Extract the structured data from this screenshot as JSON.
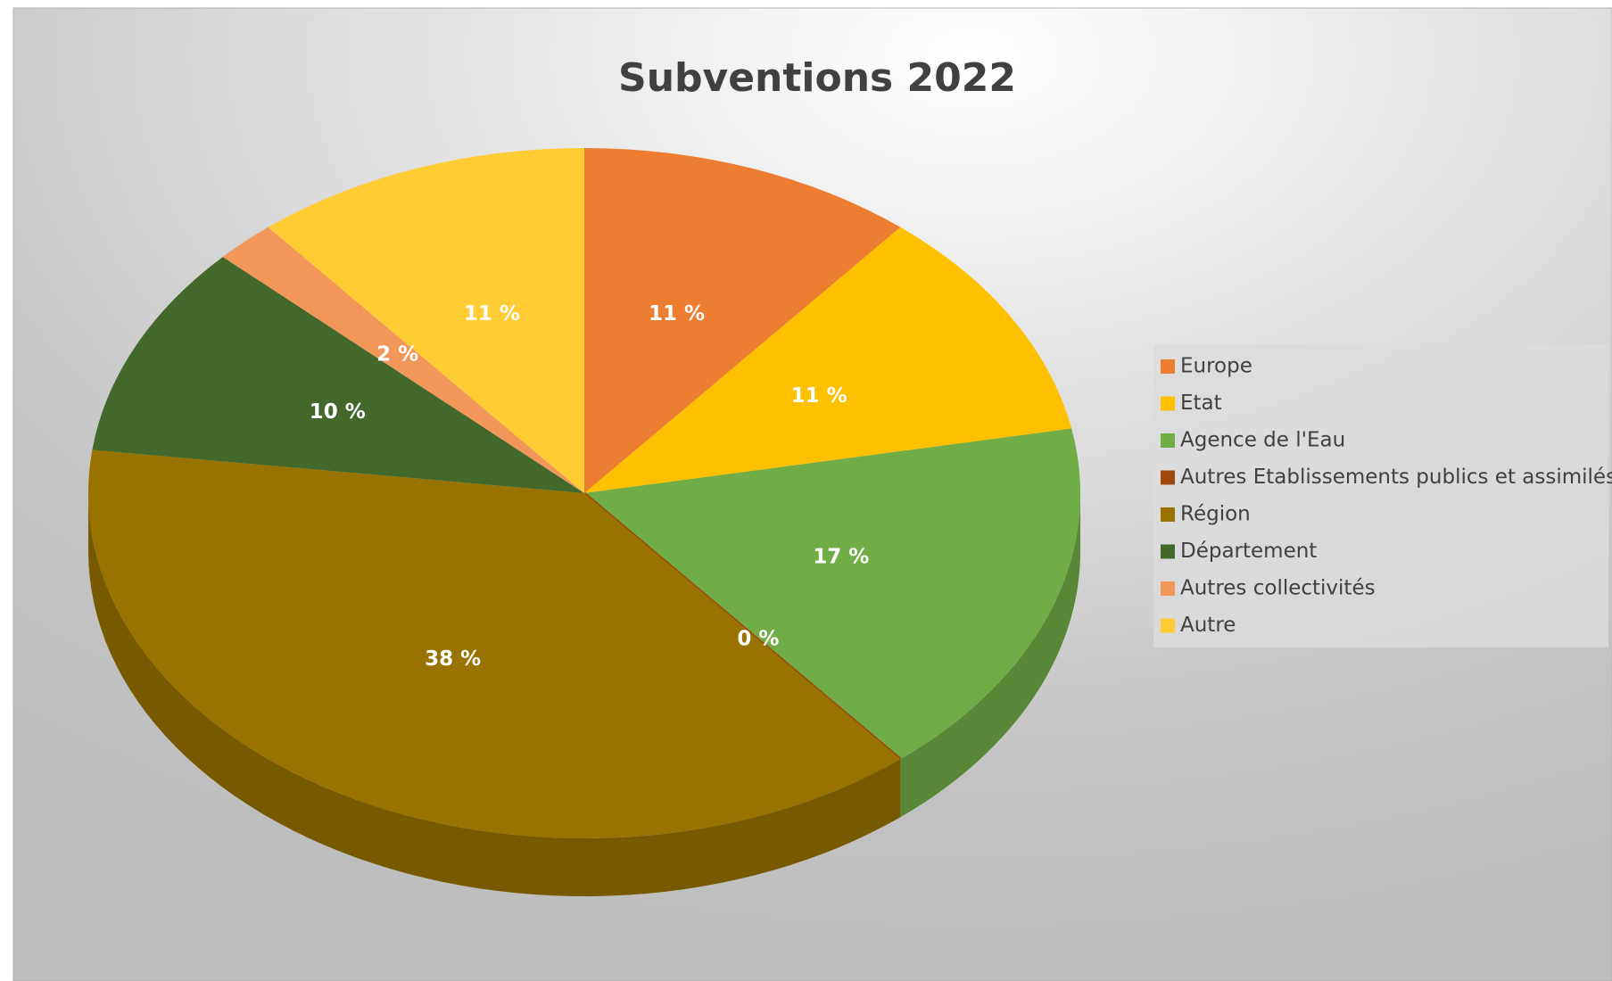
{
  "chart_data": {
    "type": "pie",
    "title": "Subventions 2022",
    "categories": [
      "Europe",
      "Etat",
      "Agence de l'Eau",
      "Autres Etablissements publics et assimilés",
      "Région",
      "Département",
      "Autres collectivités",
      "Autre"
    ],
    "values": [
      11,
      11,
      17,
      0,
      38,
      10,
      2,
      11
    ],
    "value_labels": [
      "11 %",
      "11 %",
      "17 %",
      "0 %",
      "38 %",
      "10 %",
      "2 %",
      "11 %"
    ],
    "colors": [
      "#ed7d31",
      "#ffc000",
      "#70ad47",
      "#9e480e",
      "#997300",
      "#43682b",
      "#f1975a",
      "#ffcd33"
    ],
    "legend": "right"
  }
}
